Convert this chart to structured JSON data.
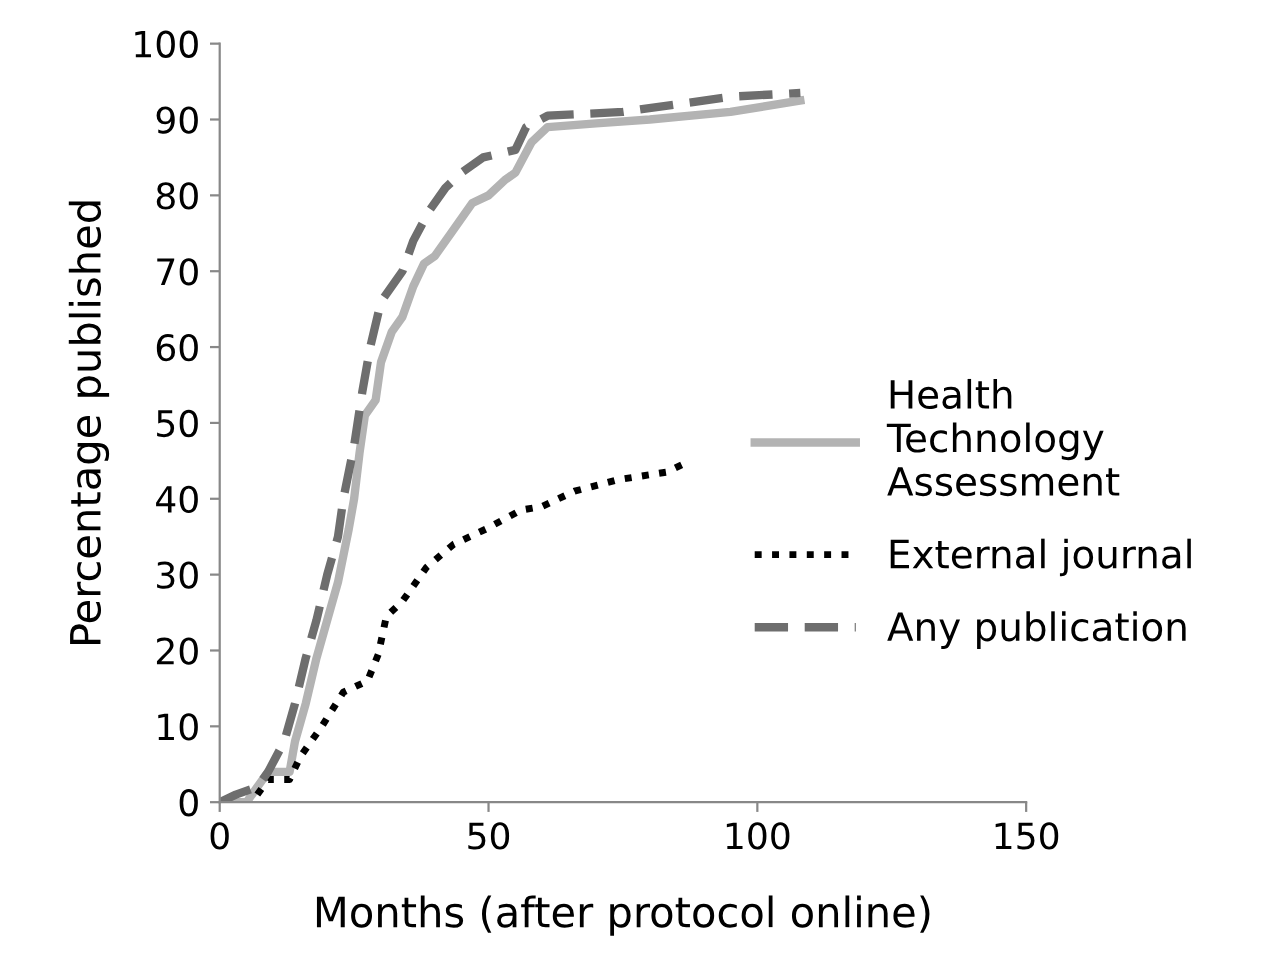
{
  "chart_data": {
    "type": "line",
    "xlabel": "Months (after protocol online)",
    "ylabel": "Percentage published",
    "xlim": [
      0,
      150
    ],
    "xticks": [
      0,
      50,
      100,
      150
    ],
    "ylim": [
      0,
      100
    ],
    "yticks": [
      0,
      10,
      20,
      30,
      40,
      50,
      60,
      70,
      80,
      90,
      100
    ],
    "grid": false,
    "legend": "right",
    "marker": "none",
    "series": [
      {
        "name": "Health Technology Assessment",
        "color": "#b3b3b3",
        "line_style": "solid",
        "x": [
          0,
          5,
          7,
          9,
          13,
          14,
          16,
          18,
          20,
          22,
          24,
          25,
          26,
          27,
          29,
          30,
          32,
          34,
          36,
          38,
          40,
          43,
          47,
          50,
          53,
          55,
          58,
          61,
          70,
          80,
          95,
          108
        ],
        "values": [
          0,
          0,
          2,
          4,
          4,
          8,
          13,
          19,
          24,
          29,
          36,
          40,
          46,
          51,
          53,
          58,
          62,
          64,
          68,
          71,
          72,
          75,
          79,
          80,
          82,
          83,
          87,
          89,
          89.5,
          90,
          91,
          92.5
        ]
      },
      {
        "name": "External journal",
        "color": "#000000",
        "line_style": "dotted",
        "x": [
          7,
          9,
          13,
          15,
          19,
          23,
          27.5,
          29.5,
          31,
          34,
          38.5,
          43.5,
          49.5,
          56,
          60,
          66,
          74,
          83,
          86
        ],
        "values": [
          1,
          3,
          3,
          6,
          10,
          14.5,
          16,
          19.5,
          24.5,
          26.5,
          31,
          34,
          36,
          38.5,
          39,
          41,
          42.5,
          43.5,
          44.5
        ]
      },
      {
        "name": "Any publication",
        "color": "#6e6e6e",
        "line_style": "dashed",
        "x": [
          0,
          3,
          7,
          9,
          12,
          14,
          16,
          18,
          20,
          22,
          23,
          25,
          26.5,
          28,
          30,
          32,
          34,
          36,
          39,
          42,
          45,
          49,
          55,
          57,
          61,
          75,
          85,
          95,
          108
        ],
        "values": [
          0,
          1,
          2,
          4,
          8,
          13,
          19,
          24,
          30,
          35,
          40,
          47,
          54,
          60,
          66,
          68,
          70,
          74,
          78,
          81,
          83,
          85,
          86,
          89,
          90.5,
          91,
          92,
          93,
          93.5
        ]
      }
    ]
  }
}
